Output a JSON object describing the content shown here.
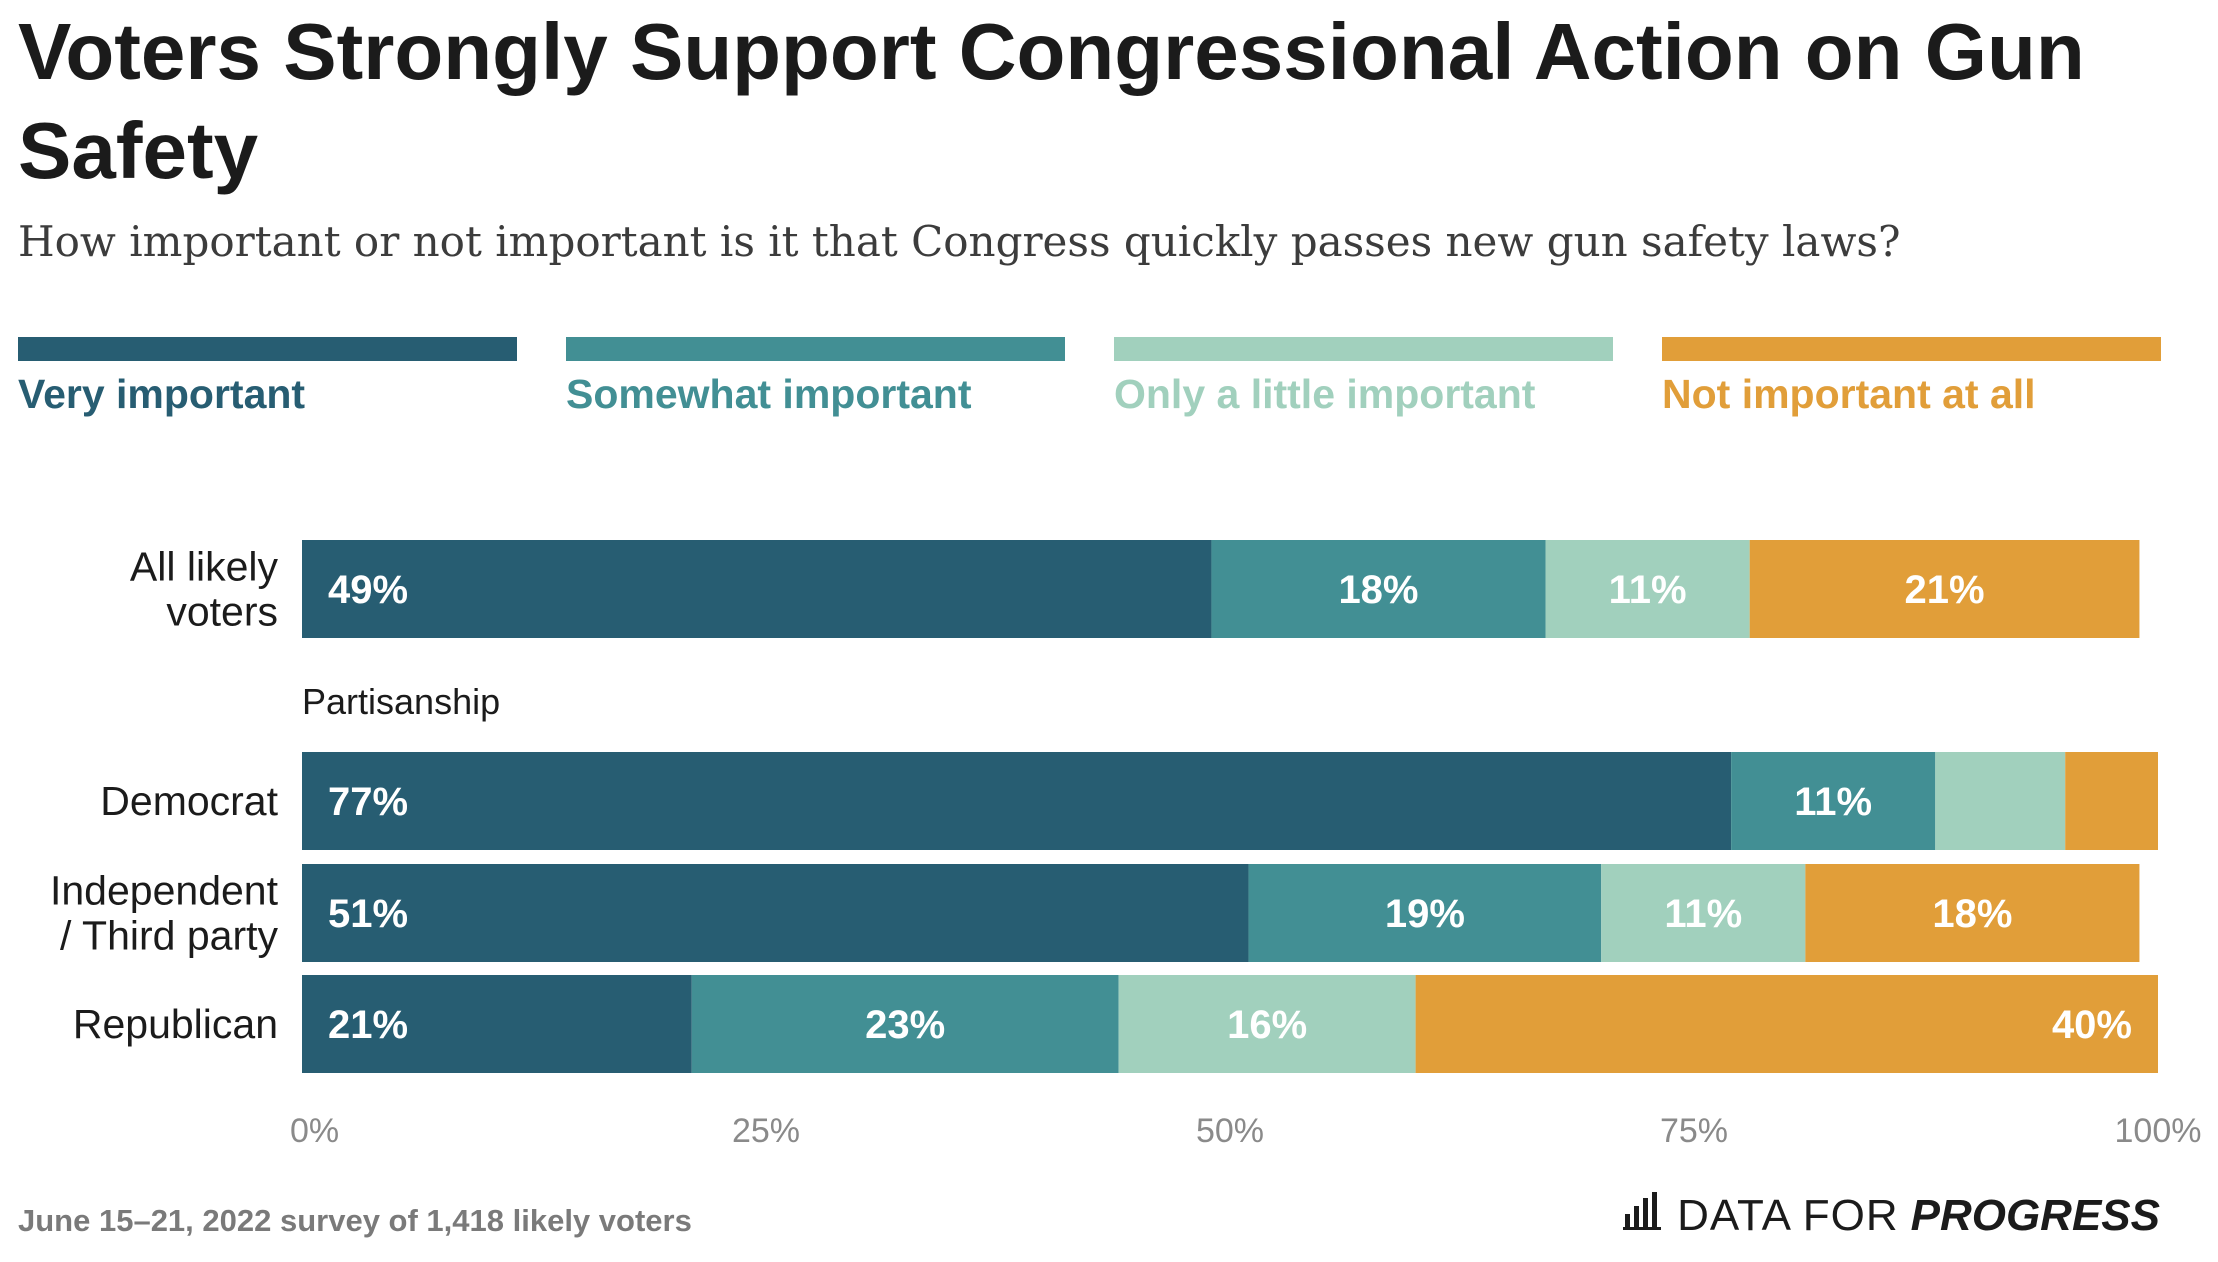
{
  "title": "Voters Strongly Support Congressional Action on Gun Safety",
  "subtitle": "How important or not important is it that Congress quickly passes new gun safety laws?",
  "footnote": "June 15–21, 2022 survey of 1,418 likely voters",
  "brand": {
    "part1": "DATA FOR",
    "part2": "PROGRESS",
    "icon": "bar-chart-icon"
  },
  "colors": {
    "very": "#275d72",
    "somewhat": "#428f94",
    "little": "#a1d0bd",
    "not": "#e19e39"
  },
  "chart_data": {
    "type": "bar",
    "orientation": "horizontal",
    "stacked": true,
    "xlim": [
      0,
      100
    ],
    "xticks": [
      "0%",
      "25%",
      "50%",
      "75%",
      "100%"
    ],
    "legend_position": "top",
    "series": [
      {
        "name": "Very important",
        "color": "#275d72"
      },
      {
        "name": "Somewhat important",
        "color": "#428f94"
      },
      {
        "name": "Only a little important",
        "color": "#a1d0bd"
      },
      {
        "name": "Not important at all",
        "color": "#e19e39"
      }
    ],
    "group_label": "Partisanship",
    "rows": [
      {
        "label_lines": [
          "All likely",
          "voters"
        ],
        "values": [
          49,
          18,
          11,
          21
        ],
        "labels": [
          "49%",
          "18%",
          "11%",
          "21%"
        ]
      },
      {
        "label_lines": [
          "Democrat"
        ],
        "values": [
          77,
          11,
          7,
          5
        ],
        "labels": [
          "77%",
          "11%",
          "",
          ""
        ]
      },
      {
        "label_lines": [
          "Independent",
          "/ Third party"
        ],
        "values": [
          51,
          19,
          11,
          18
        ],
        "labels": [
          "51%",
          "19%",
          "11%",
          "18%"
        ]
      },
      {
        "label_lines": [
          "Republican"
        ],
        "values": [
          21,
          23,
          16,
          40
        ],
        "labels": [
          "21%",
          "23%",
          "16%",
          "40%"
        ]
      }
    ]
  }
}
